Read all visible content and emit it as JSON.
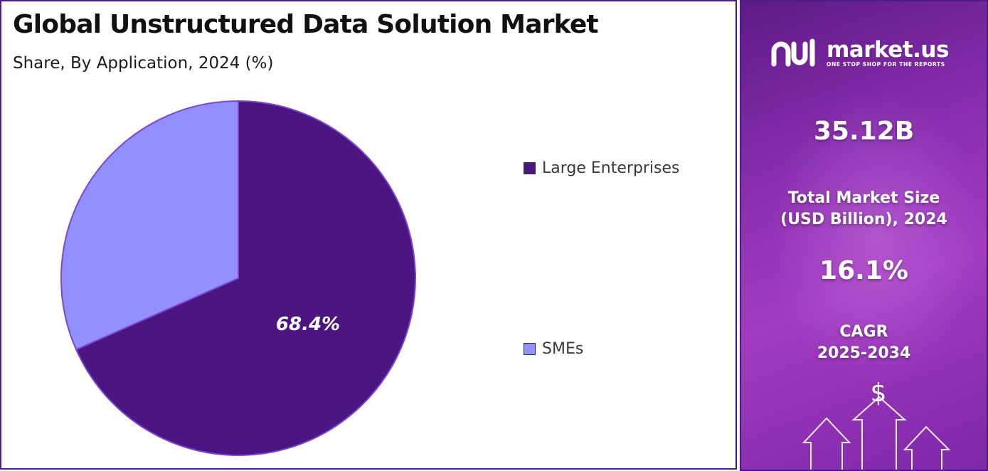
{
  "title": "Global Unstructured Data Solution Market",
  "subtitle": "Share, By Application, 2024 (%)",
  "chart_data": {
    "type": "pie",
    "title": "Global Unstructured Data Solution Market",
    "subtitle": "Share, By Application, 2024 (%)",
    "categories": [
      "Large Enterprises",
      "SMEs"
    ],
    "values": [
      68.4,
      31.6
    ],
    "data_labels": [
      "68.4%",
      ""
    ],
    "colors": [
      "#4b1680",
      "#9290fd"
    ],
    "legend_position": "right"
  },
  "legend": [
    {
      "label": "Large Enterprises",
      "color": "#4b1680"
    },
    {
      "label": "SMEs",
      "color": "#9290fd"
    }
  ],
  "sidebar": {
    "brand": "market.us",
    "tagline": "ONE STOP SHOP FOR THE REPORTS",
    "market_size_value": "35.12B",
    "market_size_label_line1": "Total Market Size",
    "market_size_label_line2": "(USD Billion), 2024",
    "cagr_value": "16.1%",
    "cagr_label_line1": "CAGR",
    "cagr_label_line2": "2025-2034",
    "currency_symbol": "$"
  }
}
